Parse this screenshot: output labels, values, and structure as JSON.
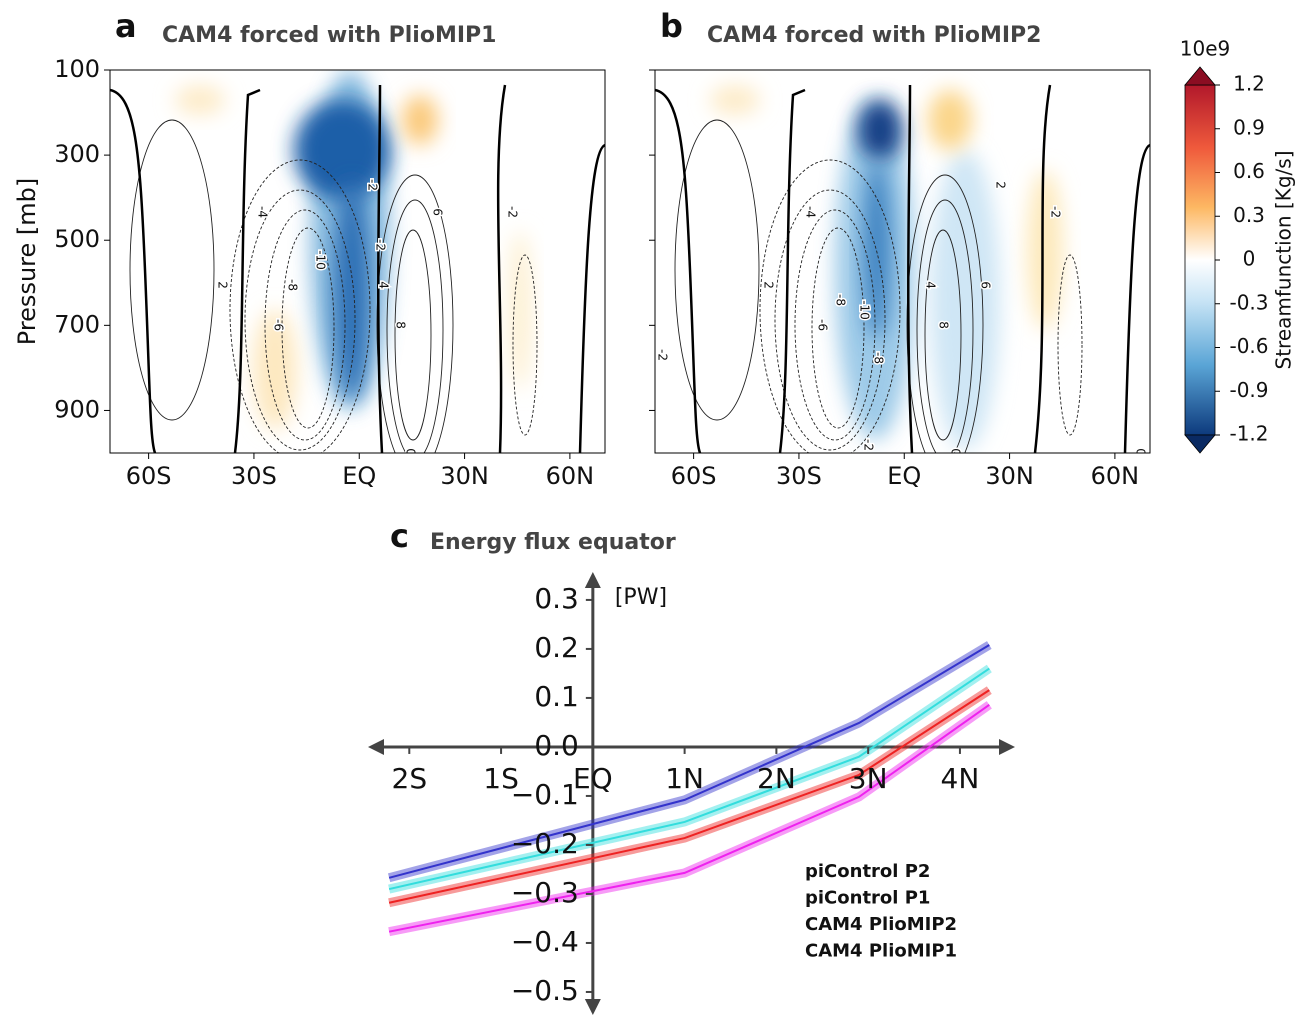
{
  "chart_data": [
    {
      "type": "contour",
      "label": "a",
      "title": "CAM4 forced with PlioMIP1",
      "ylabel": "Pressure [mb]",
      "xlim": [
        -71,
        70
      ],
      "ylim": [
        1000,
        100
      ],
      "xticks": [
        {
          "value": -60,
          "label": "60S"
        },
        {
          "value": -30,
          "label": "30S"
        },
        {
          "value": 0,
          "label": "EQ"
        },
        {
          "value": 30,
          "label": "30N"
        },
        {
          "value": 60,
          "label": "60N"
        }
      ],
      "yticks": [
        100,
        300,
        500,
        700,
        900
      ],
      "contour_labels": [
        2,
        -4,
        -6,
        -8,
        -10,
        -2,
        -2,
        4,
        6,
        8,
        0,
        -2
      ]
    },
    {
      "type": "contour",
      "label": "b",
      "title": "CAM4 forced with PlioMIP2",
      "xlim": [
        -71,
        70
      ],
      "ylim": [
        1000,
        100
      ],
      "xticks": [
        {
          "value": -60,
          "label": "60S"
        },
        {
          "value": -30,
          "label": "30S"
        },
        {
          "value": 0,
          "label": "EQ"
        },
        {
          "value": 30,
          "label": "30N"
        },
        {
          "value": 60,
          "label": "60N"
        }
      ],
      "yticks": [
        100,
        300,
        500,
        700,
        900
      ],
      "contour_labels": [
        2,
        -4,
        -6,
        -8,
        -10,
        -8,
        4,
        6,
        8,
        2,
        -2,
        -2,
        0,
        0,
        -2
      ]
    },
    {
      "type": "colorbar",
      "scale_label": "10e9",
      "label": "Streamfunction [Kg/s]",
      "lim": [
        -1.2,
        1.2
      ],
      "ticks": [
        1.2,
        0.9,
        0.6,
        0.3,
        0,
        {
          "value": -0.3,
          "label": "-0.3"
        },
        {
          "value": -0.6,
          "label": "-0.6"
        },
        {
          "value": -0.9,
          "label": "-0.9"
        },
        {
          "value": -1.2,
          "label": "-1.2"
        }
      ]
    },
    {
      "type": "line",
      "label": "c",
      "title": "Energy flux equator",
      "ylabel": "[PW]",
      "xlim": [
        -2.45,
        4.6
      ],
      "ylim": [
        -0.547,
        0.357
      ],
      "xticks": [
        {
          "value": -2,
          "label": "2S"
        },
        {
          "value": -1,
          "label": "1S"
        },
        {
          "value": 0,
          "label": "EQ"
        },
        {
          "value": 1,
          "label": "1N"
        },
        {
          "value": 2,
          "label": "2N"
        },
        {
          "value": 3,
          "label": "3N"
        },
        {
          "value": 4,
          "label": "4N"
        }
      ],
      "yticks": [
        0.3,
        0.2,
        0.1,
        {
          "value": 0,
          "label": "0.0"
        },
        {
          "value": -0.1,
          "label": "−0.1"
        },
        {
          "value": -0.2,
          "label": "−0.2"
        },
        {
          "value": -0.3,
          "label": "−0.3"
        },
        {
          "value": -0.4,
          "label": "−0.4"
        },
        {
          "value": -0.5,
          "label": "−0.5"
        }
      ],
      "x": [
        -2.22,
        1,
        2.9,
        4.32
      ],
      "legend": "lower right",
      "series": [
        {
          "name": "piControl P2",
          "color": "#3333cc",
          "values": [
            -0.267,
            -0.108,
            0.049,
            0.208
          ]
        },
        {
          "name": "piControl P1",
          "color": "#33dddd",
          "values": [
            -0.29,
            -0.153,
            -0.02,
            0.16
          ]
        },
        {
          "name": "CAM4 PlioMIP2",
          "color": "#ee2222",
          "values": [
            -0.318,
            -0.186,
            -0.057,
            0.116
          ]
        },
        {
          "name": "CAM4 PlioMIP1",
          "color": "#ee22ee",
          "values": [
            -0.377,
            -0.257,
            -0.102,
            0.086
          ]
        }
      ]
    }
  ]
}
